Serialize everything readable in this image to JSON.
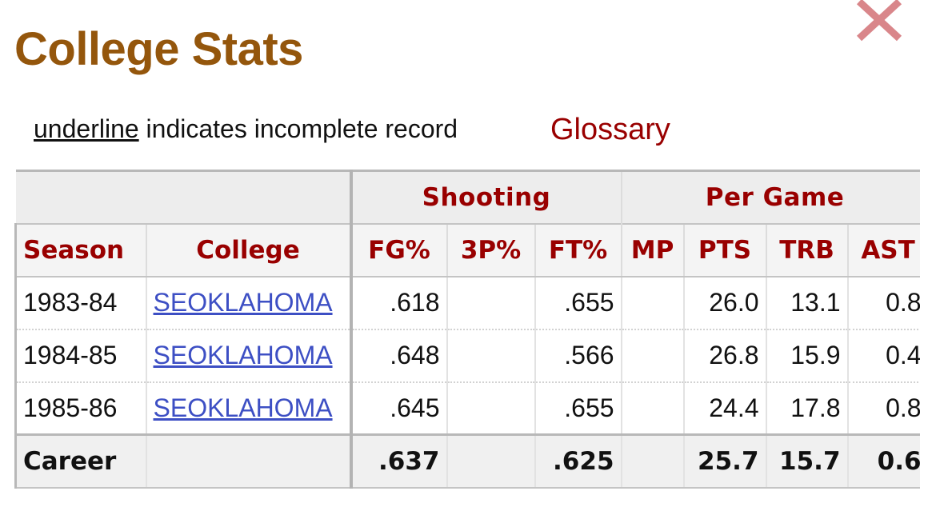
{
  "page": {
    "title": "College Stats",
    "legend_underlined": "underline",
    "legend_rest": " indicates incomplete record",
    "glossary_link": "Glossary",
    "close_icon": "close-x-icon",
    "colors": {
      "title": "#94560c",
      "header_text": "#990000",
      "link": "#3d4fc4",
      "close": "#d9868a"
    }
  },
  "table": {
    "over_headers": [
      "Shooting",
      "Per Game"
    ],
    "columns": [
      "Season",
      "College",
      "FG%",
      "3P%",
      "FT%",
      "MP",
      "PTS",
      "TRB",
      "AST"
    ],
    "rows": [
      {
        "season": "1983-84",
        "college": "SEOKLAHOMA",
        "fg": ".618",
        "tp": "",
        "ft": ".655",
        "mp": "",
        "pts": "26.0",
        "trb": "13.1",
        "ast": "0.8"
      },
      {
        "season": "1984-85",
        "college": "SEOKLAHOMA",
        "fg": ".648",
        "tp": "",
        "ft": ".566",
        "mp": "",
        "pts": "26.8",
        "trb": "15.9",
        "ast": "0.4"
      },
      {
        "season": "1985-86",
        "college": "SEOKLAHOMA",
        "fg": ".645",
        "tp": "",
        "ft": ".655",
        "mp": "",
        "pts": "24.4",
        "trb": "17.8",
        "ast": "0.8"
      }
    ],
    "footer": {
      "season": "Career",
      "college": "",
      "fg": ".637",
      "tp": "",
      "ft": ".625",
      "mp": "",
      "pts": "25.7",
      "trb": "15.7",
      "ast": "0.6"
    }
  }
}
